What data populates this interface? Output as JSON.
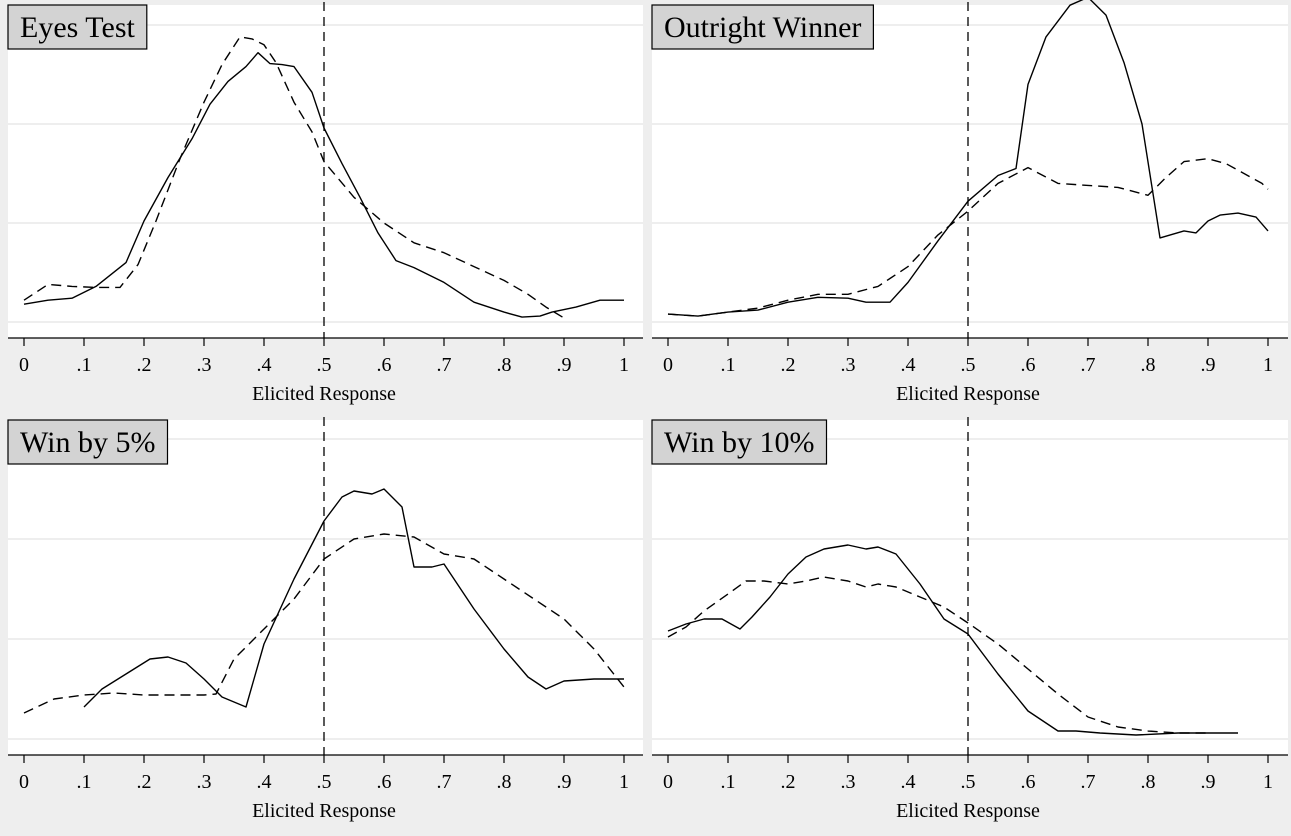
{
  "chart_data": [
    {
      "type": "line",
      "title": "Eyes Test",
      "xlabel": "Elicited Response",
      "xlim": [
        0,
        1
      ],
      "ylim": [
        0,
        3.2
      ],
      "xticks": [
        0,
        0.1,
        0.2,
        0.3,
        0.4,
        0.5,
        0.6,
        0.7,
        0.8,
        0.9,
        1
      ],
      "xtick_labels": [
        "0",
        ".1",
        ".2",
        ".3",
        ".4",
        ".5",
        ".6",
        ".7",
        ".8",
        ".9",
        "1"
      ],
      "yticks": [
        0,
        1,
        2,
        3
      ],
      "reference_line_x": 0.5,
      "grid": true,
      "series": [
        {
          "style": "solid",
          "x": [
            0,
            0.04,
            0.08,
            0.12,
            0.17,
            0.2,
            0.24,
            0.28,
            0.31,
            0.34,
            0.37,
            0.39,
            0.41,
            0.43,
            0.45,
            0.48,
            0.5,
            0.53,
            0.56,
            0.59,
            0.62,
            0.65,
            0.7,
            0.75,
            0.8,
            0.83,
            0.86,
            0.88,
            0.92,
            0.96,
            1
          ],
          "y": [
            0.18,
            0.22,
            0.24,
            0.36,
            0.6,
            1.02,
            1.46,
            1.85,
            2.2,
            2.43,
            2.58,
            2.72,
            2.61,
            2.6,
            2.58,
            2.32,
            1.96,
            1.6,
            1.26,
            0.9,
            0.62,
            0.55,
            0.4,
            0.2,
            0.1,
            0.05,
            0.06,
            0.1,
            0.15,
            0.22,
            0.22
          ]
        },
        {
          "style": "dashed",
          "x": [
            0,
            0.04,
            0.08,
            0.12,
            0.16,
            0.19,
            0.22,
            0.26,
            0.3,
            0.33,
            0.36,
            0.38,
            0.4,
            0.42,
            0.45,
            0.48,
            0.5,
            0.55,
            0.6,
            0.65,
            0.7,
            0.75,
            0.8,
            0.84,
            0.87,
            0.9
          ],
          "y": [
            0.22,
            0.38,
            0.36,
            0.35,
            0.35,
            0.58,
            1.02,
            1.65,
            2.22,
            2.6,
            2.88,
            2.86,
            2.8,
            2.62,
            2.22,
            1.92,
            1.62,
            1.26,
            1.0,
            0.8,
            0.7,
            0.56,
            0.42,
            0.28,
            0.15,
            0.04
          ]
        }
      ]
    },
    {
      "type": "line",
      "title": "Outright Winner",
      "xlabel": "Elicited Response",
      "xlim": [
        0,
        1
      ],
      "ylim": [
        0,
        3.2
      ],
      "xticks": [
        0,
        0.1,
        0.2,
        0.3,
        0.4,
        0.5,
        0.6,
        0.7,
        0.8,
        0.9,
        1
      ],
      "xtick_labels": [
        "0",
        ".1",
        ".2",
        ".3",
        ".4",
        ".5",
        ".6",
        ".7",
        ".8",
        ".9",
        "1"
      ],
      "yticks": [
        0,
        1,
        2,
        3
      ],
      "reference_line_x": 0.5,
      "grid": true,
      "series": [
        {
          "style": "solid",
          "x": [
            0,
            0.05,
            0.1,
            0.15,
            0.2,
            0.25,
            0.3,
            0.33,
            0.37,
            0.4,
            0.45,
            0.5,
            0.55,
            0.58,
            0.6,
            0.63,
            0.67,
            0.7,
            0.73,
            0.76,
            0.79,
            0.82,
            0.86,
            0.88,
            0.9,
            0.92,
            0.95,
            0.98,
            1
          ],
          "y": [
            0.08,
            0.06,
            0.1,
            0.12,
            0.2,
            0.25,
            0.24,
            0.2,
            0.2,
            0.4,
            0.82,
            1.22,
            1.48,
            1.55,
            2.4,
            2.88,
            3.2,
            3.28,
            3.1,
            2.62,
            2.0,
            0.85,
            0.92,
            0.9,
            1.02,
            1.08,
            1.1,
            1.06,
            0.92
          ]
        },
        {
          "style": "dashed",
          "x": [
            0,
            0.05,
            0.1,
            0.15,
            0.2,
            0.25,
            0.3,
            0.35,
            0.4,
            0.45,
            0.5,
            0.55,
            0.6,
            0.65,
            0.7,
            0.75,
            0.8,
            0.83,
            0.86,
            0.9,
            0.93,
            0.96,
            0.99,
            1
          ],
          "y": [
            0.08,
            0.06,
            0.1,
            0.14,
            0.22,
            0.28,
            0.28,
            0.36,
            0.56,
            0.88,
            1.12,
            1.4,
            1.56,
            1.4,
            1.38,
            1.36,
            1.28,
            1.46,
            1.62,
            1.65,
            1.6,
            1.5,
            1.4,
            1.34
          ]
        }
      ]
    },
    {
      "type": "line",
      "title": "Win by 5%",
      "xlabel": "Elicited Response",
      "xlim": [
        0,
        1
      ],
      "ylim": [
        0,
        3.2
      ],
      "xticks": [
        0,
        0.1,
        0.2,
        0.3,
        0.4,
        0.5,
        0.6,
        0.7,
        0.8,
        0.9,
        1
      ],
      "xtick_labels": [
        "0",
        ".1",
        ".2",
        ".3",
        ".4",
        ".5",
        ".6",
        ".7",
        ".8",
        ".9",
        "1"
      ],
      "yticks": [
        0,
        1,
        2,
        3
      ],
      "reference_line_x": 0.5,
      "grid": true,
      "series": [
        {
          "style": "solid",
          "x": [
            0.1,
            0.13,
            0.17,
            0.21,
            0.24,
            0.27,
            0.3,
            0.33,
            0.37,
            0.4,
            0.45,
            0.5,
            0.53,
            0.55,
            0.58,
            0.6,
            0.63,
            0.65,
            0.68,
            0.7,
            0.75,
            0.8,
            0.84,
            0.87,
            0.9,
            0.95,
            1
          ],
          "y": [
            0.32,
            0.5,
            0.65,
            0.8,
            0.82,
            0.76,
            0.6,
            0.42,
            0.32,
            0.95,
            1.6,
            2.18,
            2.42,
            2.48,
            2.45,
            2.5,
            2.32,
            1.72,
            1.72,
            1.75,
            1.3,
            0.9,
            0.62,
            0.5,
            0.58,
            0.6,
            0.6
          ]
        },
        {
          "style": "dashed",
          "x": [
            0,
            0.05,
            0.1,
            0.15,
            0.2,
            0.25,
            0.3,
            0.32,
            0.35,
            0.4,
            0.45,
            0.5,
            0.55,
            0.6,
            0.65,
            0.7,
            0.75,
            0.8,
            0.85,
            0.9,
            0.95,
            1
          ],
          "y": [
            0.26,
            0.4,
            0.44,
            0.46,
            0.44,
            0.44,
            0.44,
            0.45,
            0.8,
            1.1,
            1.4,
            1.8,
            2.0,
            2.05,
            2.02,
            1.85,
            1.8,
            1.6,
            1.4,
            1.2,
            0.9,
            0.52
          ]
        }
      ]
    },
    {
      "type": "line",
      "title": "Win by 10%",
      "xlabel": "Elicited Response",
      "xlim": [
        0,
        1
      ],
      "ylim": [
        0,
        3.2
      ],
      "xticks": [
        0,
        0.1,
        0.2,
        0.3,
        0.4,
        0.5,
        0.6,
        0.7,
        0.8,
        0.9,
        1
      ],
      "xtick_labels": [
        "0",
        ".1",
        ".2",
        ".3",
        ".4",
        ".5",
        ".6",
        ".7",
        ".8",
        ".9",
        "1"
      ],
      "yticks": [
        0,
        1,
        2,
        3
      ],
      "reference_line_x": 0.5,
      "grid": true,
      "series": [
        {
          "style": "solid",
          "x": [
            0,
            0.03,
            0.06,
            0.09,
            0.12,
            0.14,
            0.17,
            0.2,
            0.23,
            0.26,
            0.3,
            0.33,
            0.35,
            0.38,
            0.42,
            0.46,
            0.5,
            0.55,
            0.6,
            0.65,
            0.68,
            0.72,
            0.78,
            0.85,
            0.9,
            0.95
          ],
          "y": [
            1.08,
            1.15,
            1.2,
            1.2,
            1.1,
            1.22,
            1.42,
            1.65,
            1.82,
            1.9,
            1.94,
            1.9,
            1.92,
            1.85,
            1.55,
            1.2,
            1.05,
            0.65,
            0.28,
            0.08,
            0.08,
            0.06,
            0.04,
            0.06,
            0.06,
            0.06
          ]
        },
        {
          "style": "dashed",
          "x": [
            0,
            0.03,
            0.06,
            0.1,
            0.13,
            0.16,
            0.2,
            0.23,
            0.26,
            0.3,
            0.33,
            0.35,
            0.38,
            0.42,
            0.46,
            0.5,
            0.55,
            0.6,
            0.65,
            0.7,
            0.75,
            0.8,
            0.85,
            0.9
          ],
          "y": [
            1.02,
            1.12,
            1.28,
            1.45,
            1.58,
            1.58,
            1.55,
            1.58,
            1.62,
            1.58,
            1.52,
            1.55,
            1.52,
            1.42,
            1.32,
            1.16,
            0.95,
            0.7,
            0.45,
            0.22,
            0.12,
            0.08,
            0.06,
            0.06
          ]
        }
      ]
    }
  ]
}
